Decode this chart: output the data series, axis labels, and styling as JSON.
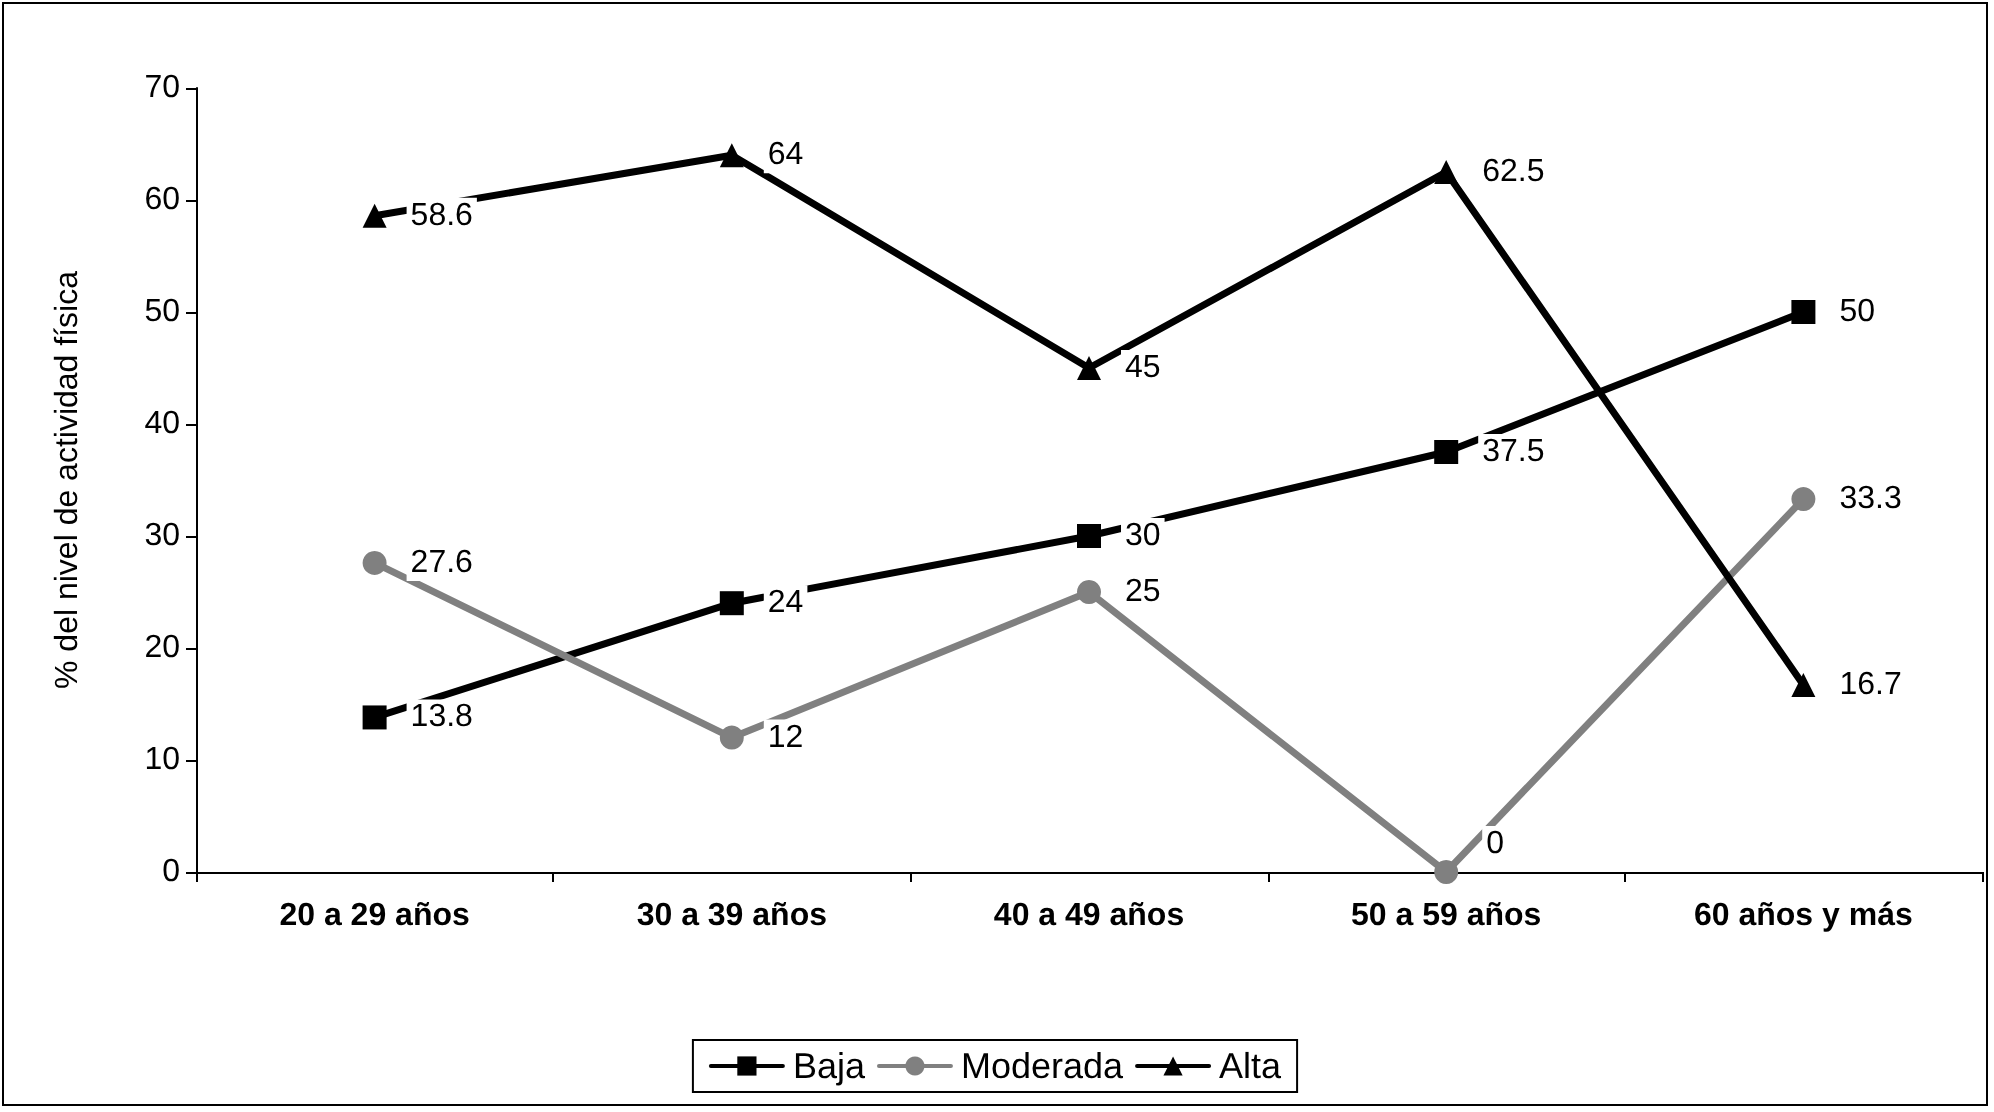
{
  "chart_data": {
    "type": "line",
    "ylabel": "% del nivel de actividad física",
    "categories": [
      "20 a 29 años",
      "30 a 39 años",
      "40 a 49 años",
      "50 a 59 años",
      "60 años y más"
    ],
    "series": [
      {
        "name": "Baja",
        "color": "#000000",
        "marker": "square",
        "values": [
          13.8,
          24,
          30,
          37.5,
          50
        ]
      },
      {
        "name": "Moderada",
        "color": "#808080",
        "marker": "circle",
        "values": [
          27.6,
          12,
          25,
          0,
          33.3
        ]
      },
      {
        "name": "Alta",
        "color": "#000000",
        "marker": "triangle",
        "values": [
          58.6,
          64,
          45,
          62.5,
          16.7
        ]
      }
    ],
    "ylim": [
      0,
      70
    ],
    "yticks": [
      0,
      10,
      20,
      30,
      40,
      50,
      60,
      70
    ],
    "grid": false,
    "legend": "bottom",
    "data_labels": true,
    "line_style": "solid"
  }
}
